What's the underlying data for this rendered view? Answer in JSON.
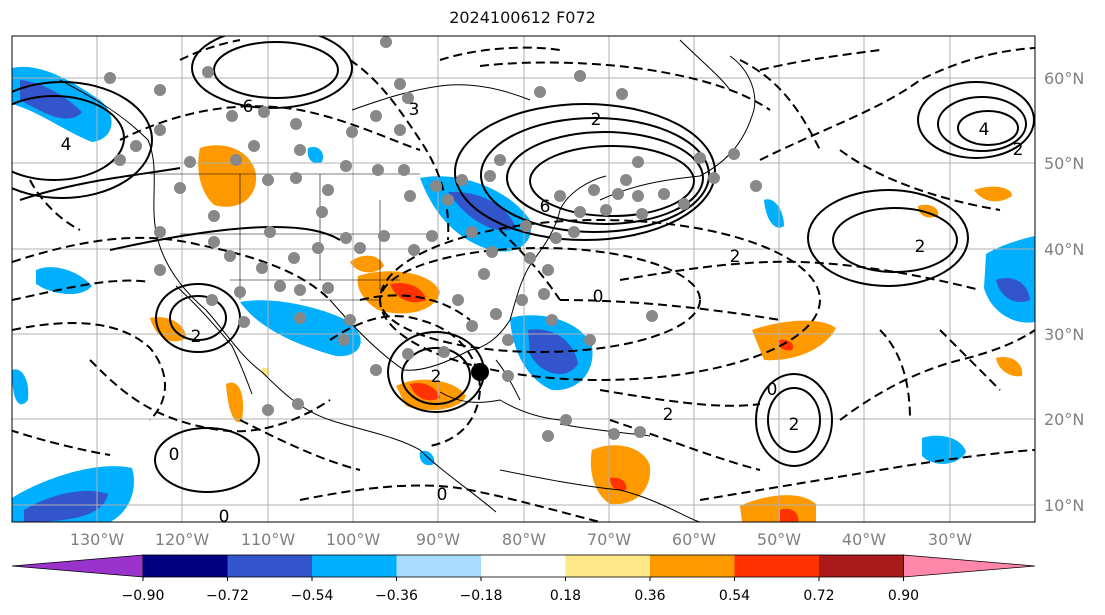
{
  "title": "2024100612 F072",
  "longitude_labels": [
    "130°W",
    "120°W",
    "110°W",
    "100°W",
    "90°W",
    "80°W",
    "70°W",
    "60°W",
    "50°W",
    "40°W",
    "30°W"
  ],
  "latitude_labels": [
    "60°N",
    "50°N",
    "40°N",
    "30°N",
    "20°N",
    "10°N"
  ],
  "contour_labels": [
    {
      "text": "4"
    },
    {
      "text": "2"
    },
    {
      "text": "0"
    },
    {
      "text": "6"
    },
    {
      "text": "3"
    },
    {
      "text": "2"
    },
    {
      "text": "0"
    },
    {
      "text": "2"
    },
    {
      "text": "0"
    },
    {
      "text": "2"
    },
    {
      "text": "2"
    },
    {
      "text": "4"
    },
    {
      "text": "2"
    },
    {
      "text": "0"
    },
    {
      "text": "2"
    },
    {
      "text": "0"
    },
    {
      "text": "6"
    },
    {
      "text": "2"
    }
  ],
  "colorbar": {
    "tick_labels": [
      "−0.90",
      "−0.72",
      "−0.54",
      "−0.36",
      "−0.18",
      "0.18",
      "0.36",
      "0.54",
      "0.72",
      "0.90"
    ],
    "colors": [
      "#9933cc",
      "#000080",
      "#3355cc",
      "#00b0ff",
      "#a8dcff",
      "#ffffff",
      "#ffe88a",
      "#ff9900",
      "#ff3300",
      "#aa1a1a",
      "#ff88aa"
    ]
  },
  "marker": {
    "name": "storm-center",
    "color": "#000000"
  }
}
